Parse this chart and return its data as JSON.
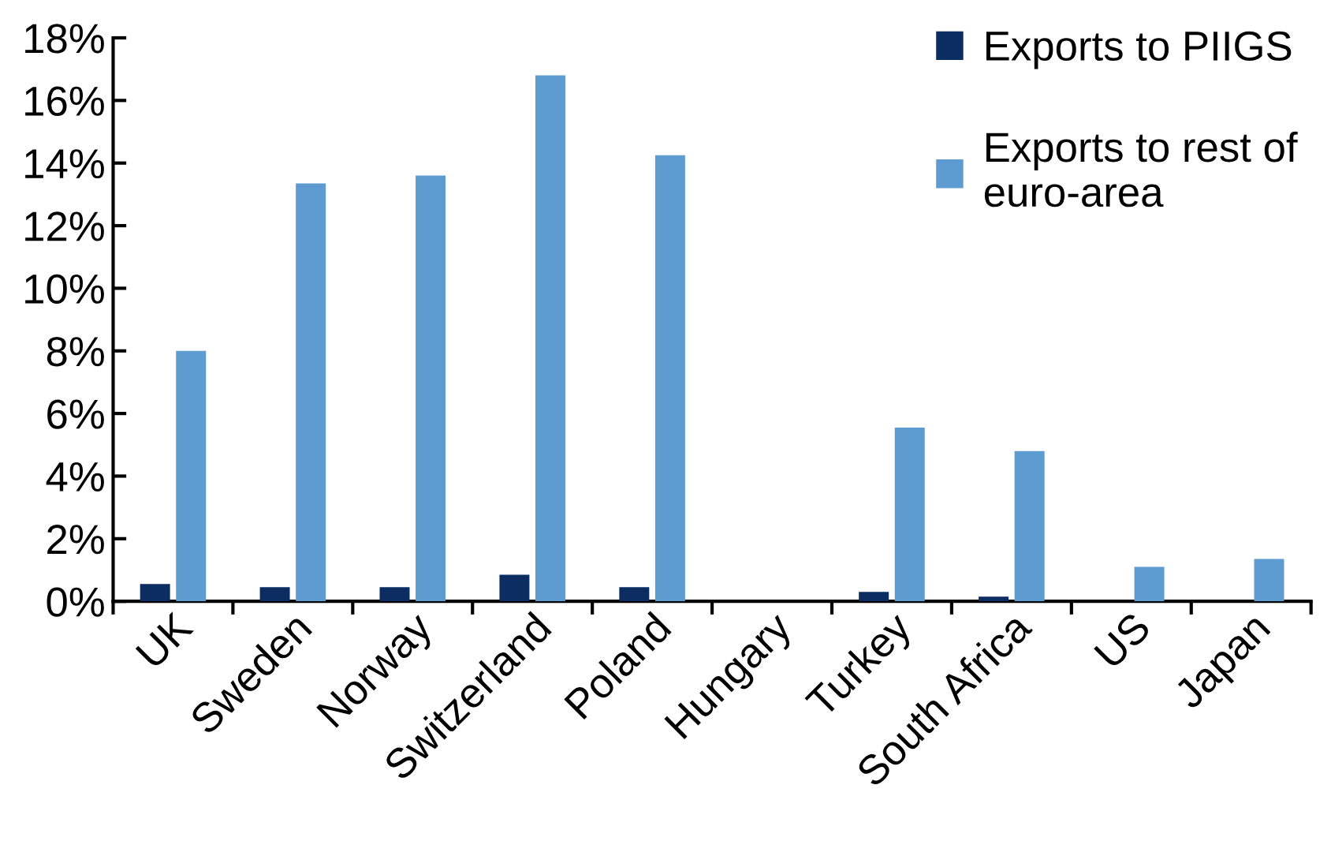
{
  "chart_data": {
    "type": "bar",
    "categories": [
      "UK",
      "Sweden",
      "Norway",
      "Switzerland",
      "Poland",
      "Hungary",
      "Turkey",
      "South Africa",
      "US",
      "Japan"
    ],
    "series": [
      {
        "name": "Exports to PIIGS",
        "color": "#0b2d62",
        "values": [
          0.55,
          0.45,
          0.45,
          0.85,
          0.45,
          null,
          0.3,
          0.15,
          null,
          null
        ]
      },
      {
        "name": "Exports to rest of\neuro-area",
        "color": "#5e9bd0",
        "values": [
          8.0,
          13.35,
          13.6,
          16.8,
          14.25,
          null,
          5.55,
          4.8,
          1.1,
          1.35
        ]
      }
    ],
    "ylim": [
      0,
      18
    ],
    "yticks": [
      {
        "value": 0,
        "label": "0%"
      },
      {
        "value": 2,
        "label": "2%"
      },
      {
        "value": 4,
        "label": "4%"
      },
      {
        "value": 6,
        "label": "6%"
      },
      {
        "value": 8,
        "label": "8%"
      },
      {
        "value": 10,
        "label": "10%"
      },
      {
        "value": 12,
        "label": "12%"
      },
      {
        "value": 14,
        "label": "14%"
      },
      {
        "value": 16,
        "label": "16%"
      },
      {
        "value": 18,
        "label": "18%"
      }
    ],
    "grid": false,
    "legend": "top right"
  }
}
